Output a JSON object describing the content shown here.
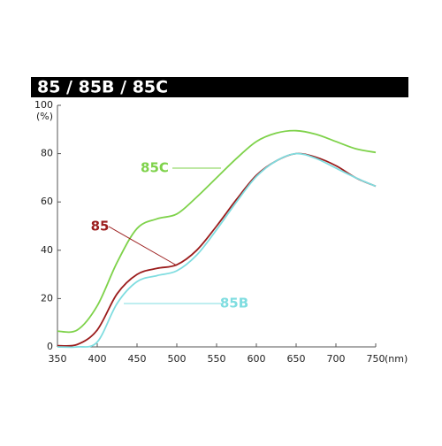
{
  "chart_data": {
    "type": "line",
    "title": "85 / 85B / 85C",
    "x_unit": "(nm)",
    "y_unit": "(%)",
    "x": [
      350,
      375,
      400,
      425,
      450,
      475,
      500,
      525,
      550,
      575,
      600,
      625,
      650,
      675,
      700,
      725,
      750
    ],
    "series": [
      {
        "name": "85C",
        "color": "#7ed24a",
        "values": [
          6.5,
          7,
          17,
          35,
          49,
          53,
          55,
          62,
          70,
          78,
          85,
          88.5,
          89.5,
          88,
          85,
          82,
          80.5
        ]
      },
      {
        "name": "85",
        "color": "#9b1c1c",
        "values": [
          0.5,
          1,
          7,
          22,
          30,
          32.5,
          34,
          40,
          50,
          61,
          71,
          77,
          80,
          78.5,
          75,
          70,
          66.5
        ]
      },
      {
        "name": "85B",
        "color": "#7fdde0",
        "values": [
          0,
          0,
          2,
          18,
          27,
          29.5,
          31.5,
          38,
          48.5,
          60,
          70.5,
          77,
          80,
          78,
          74,
          70,
          66.5
        ]
      }
    ],
    "xlim": [
      350,
      750
    ],
    "ylim": [
      0,
      100
    ],
    "xticks": [
      350,
      400,
      450,
      500,
      550,
      600,
      650,
      700,
      750
    ],
    "yticks": [
      0,
      20,
      40,
      60,
      80,
      100
    ]
  }
}
